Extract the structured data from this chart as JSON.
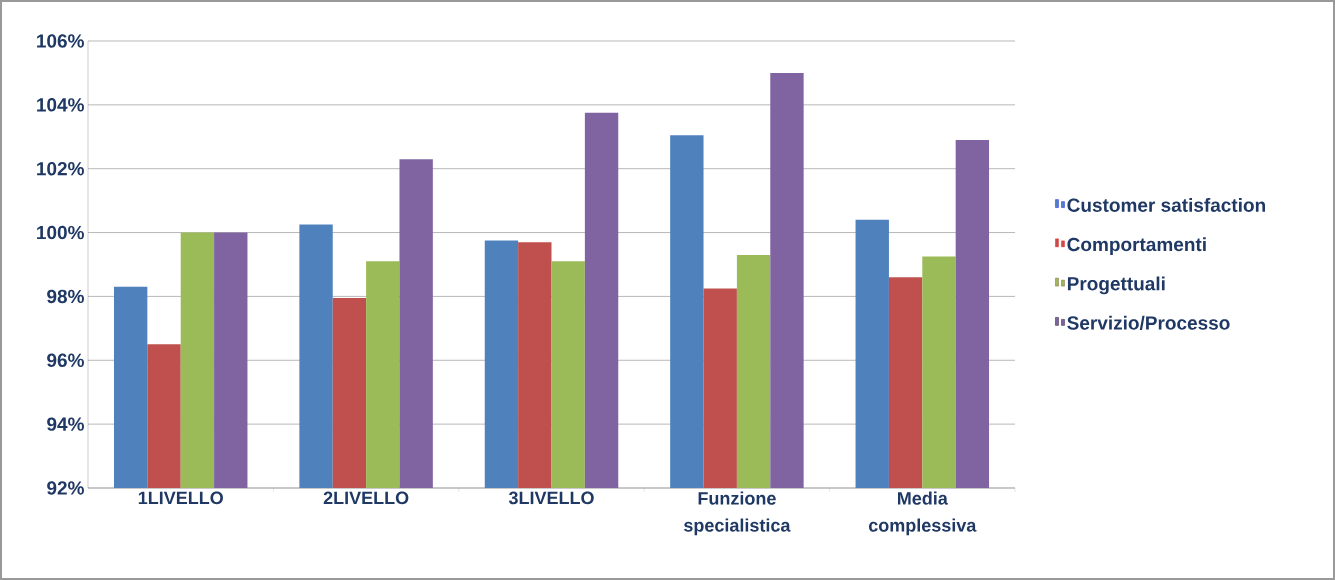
{
  "chart_data": {
    "type": "bar",
    "categories": [
      "1LIVELLO",
      "2LIVELLO",
      "3LIVELLO",
      "Funzione specialistica",
      "Media complessiva"
    ],
    "series": [
      {
        "name": "Customer satisfaction",
        "color": "#4f81bd",
        "values": [
          98.3,
          100.25,
          99.75,
          103.05,
          100.4
        ]
      },
      {
        "name": "Comportamenti",
        "color": "#c0504d",
        "values": [
          96.5,
          97.95,
          99.7,
          98.25,
          98.6
        ]
      },
      {
        "name": "Progettuali",
        "color": "#9bbb59",
        "values": [
          100,
          99.1,
          99.1,
          99.3,
          99.25
        ]
      },
      {
        "name": "Servizio/Processo",
        "color": "#8064a2",
        "values": [
          100,
          102.3,
          103.75,
          105,
          102.9
        ]
      }
    ],
    "ylim": [
      92,
      106
    ],
    "yticks": [
      {
        "value": 92,
        "label": "92%"
      },
      {
        "value": 94,
        "label": "94%"
      },
      {
        "value": 96,
        "label": "96%"
      },
      {
        "value": 98,
        "label": "98%"
      },
      {
        "value": 100,
        "label": "100%"
      },
      {
        "value": 102,
        "label": "102%"
      },
      {
        "value": 104,
        "label": "104%"
      },
      {
        "value": 106,
        "label": "106%"
      }
    ],
    "grid": "y",
    "legend": "right"
  }
}
